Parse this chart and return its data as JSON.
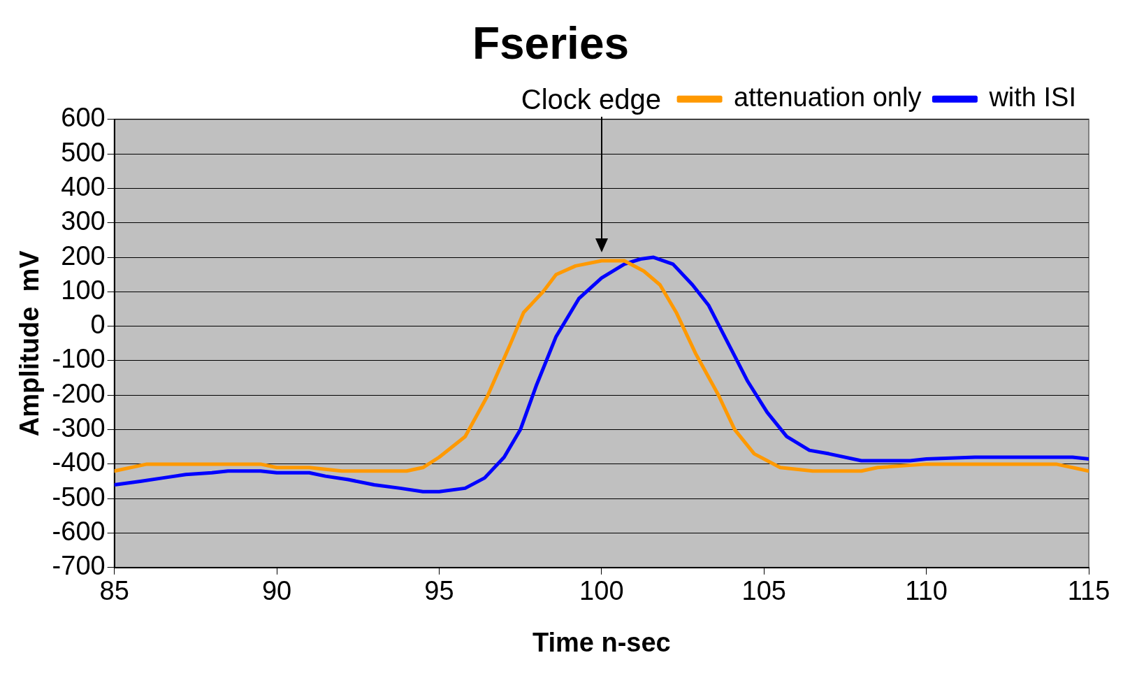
{
  "chart_data": {
    "type": "line",
    "title": "Fseries",
    "xlabel": "Time n-sec",
    "ylabel": "Amplitude  mV",
    "xlim": [
      85,
      115
    ],
    "xticks": [
      85,
      90,
      95,
      100,
      105,
      110,
      115
    ],
    "ylim": [
      -700,
      600
    ],
    "yticks": [
      -700,
      -600,
      -500,
      -400,
      -300,
      -200,
      -100,
      0,
      100,
      200,
      300,
      400,
      500,
      600
    ],
    "grid": "y",
    "legend": "top right",
    "marker": "none",
    "line_style": "solid",
    "annotations": [
      "Clock edge"
    ],
    "series": [
      {
        "name": "attenuation only",
        "color": "#ff9900",
        "x": [
          85,
          86,
          87,
          88,
          89.5,
          90,
          91,
          92,
          93,
          94,
          94.5,
          95,
          95.8,
          96.5,
          97.2,
          97.6,
          98.2,
          98.6,
          99.2,
          100,
          100.7,
          101.3,
          101.8,
          102.3,
          102.9,
          103.6,
          104.1,
          104.7,
          105.5,
          106.5,
          108,
          108.5,
          110,
          112,
          114,
          114.5,
          115
        ],
        "values": [
          -420,
          -400,
          -400,
          -400,
          -400,
          -410,
          -410,
          -420,
          -420,
          -420,
          -410,
          -380,
          -320,
          -200,
          -50,
          40,
          100,
          150,
          175,
          190,
          190,
          160,
          120,
          40,
          -80,
          -200,
          -300,
          -370,
          -410,
          -420,
          -420,
          -410,
          -400,
          -400,
          -400,
          -410,
          -420
        ]
      },
      {
        "name": "with ISI",
        "color": "#0000ff",
        "x": [
          85,
          85.8,
          86.5,
          87.2,
          88,
          88.5,
          89.5,
          90,
          91,
          91.5,
          92.2,
          93,
          93.8,
          94.5,
          95,
          95.8,
          96.4,
          97,
          97.5,
          98,
          98.6,
          99.3,
          100,
          100.7,
          101.2,
          101.6,
          102.2,
          102.8,
          103.3,
          103.9,
          104.5,
          105.1,
          105.7,
          106.4,
          107,
          108,
          109.5,
          110,
          111.5,
          112,
          114.5,
          115
        ],
        "values": [
          -460,
          -450,
          -440,
          -430,
          -425,
          -420,
          -420,
          -425,
          -425,
          -435,
          -445,
          -460,
          -470,
          -480,
          -480,
          -470,
          -440,
          -380,
          -300,
          -170,
          -30,
          80,
          140,
          180,
          195,
          200,
          180,
          120,
          60,
          -50,
          -160,
          -250,
          -320,
          -360,
          -370,
          -390,
          -390,
          -385,
          -380,
          -380,
          -380,
          -385
        ]
      }
    ]
  }
}
